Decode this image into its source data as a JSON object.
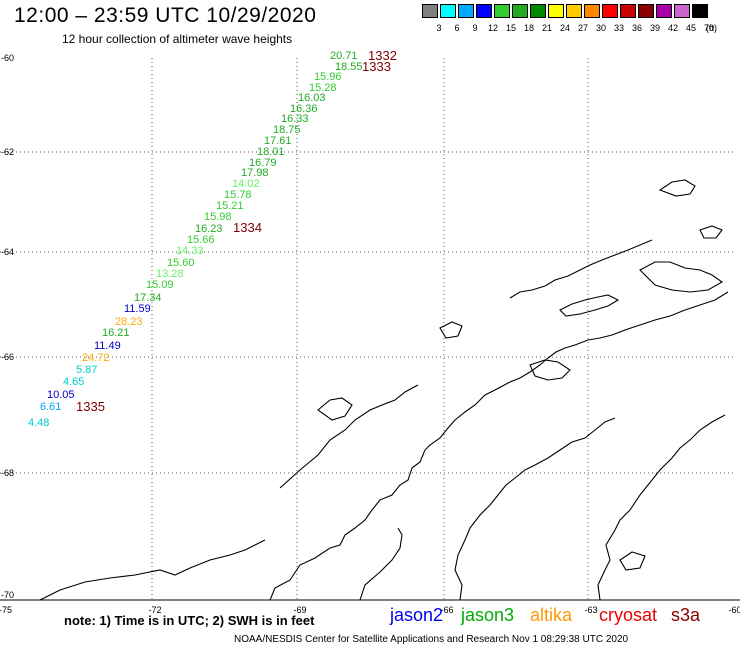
{
  "header": {
    "title": "12:00 – 23:59 UTC 10/29/2020",
    "subtitle": "12 hour collection of altimeter wave heights"
  },
  "color_scale": {
    "unit": "(ft)",
    "bins": [
      {
        "label": "3",
        "color": "#808080"
      },
      {
        "label": "6",
        "color": "#00ffff"
      },
      {
        "label": "9",
        "color": "#00aaff"
      },
      {
        "label": "12",
        "color": "#0000ff"
      },
      {
        "label": "15",
        "color": "#33cc33"
      },
      {
        "label": "18",
        "color": "#22aa22"
      },
      {
        "label": "21",
        "color": "#008800"
      },
      {
        "label": "24",
        "color": "#ffff00"
      },
      {
        "label": "27",
        "color": "#ffcc00"
      },
      {
        "label": "30",
        "color": "#ff8800"
      },
      {
        "label": "33",
        "color": "#ff0000"
      },
      {
        "label": "36",
        "color": "#cc0000"
      },
      {
        "label": "39",
        "color": "#880000"
      },
      {
        "label": "42",
        "color": "#aa00aa"
      },
      {
        "label": "45",
        "color": "#cc66cc"
      },
      {
        "label": "70",
        "color": "#000000"
      }
    ]
  },
  "map": {
    "lon_ticks": [
      "-75",
      "-72",
      "-69",
      "-66",
      "-63",
      "-60"
    ],
    "lat_ticks": [
      "-60",
      "-62",
      "-64",
      "-66",
      "-68",
      "-70"
    ],
    "track_color": "#800000",
    "track_labels": [
      "1332",
      "1333",
      "1334",
      "1335"
    ],
    "observations": [
      {
        "value": "20.71",
        "color": "#22aa22"
      },
      {
        "value": "18.55",
        "color": "#22aa22"
      },
      {
        "value": "15.96",
        "color": "#33cc33"
      },
      {
        "value": "15.28",
        "color": "#33cc33"
      },
      {
        "value": "16.03",
        "color": "#22aa22"
      },
      {
        "value": "16.36",
        "color": "#22aa22"
      },
      {
        "value": "16.33",
        "color": "#22aa22"
      },
      {
        "value": "18.75",
        "color": "#22aa22"
      },
      {
        "value": "17.61",
        "color": "#22aa22"
      },
      {
        "value": "18.01",
        "color": "#22aa22"
      },
      {
        "value": "16.79",
        "color": "#22aa22"
      },
      {
        "value": "17.98",
        "color": "#22aa22"
      },
      {
        "value": "14.02",
        "color": "#66ee66"
      },
      {
        "value": "15.78",
        "color": "#33cc33"
      },
      {
        "value": "15.21",
        "color": "#33cc33"
      },
      {
        "value": "15.98",
        "color": "#33cc33"
      },
      {
        "value": "16.23",
        "color": "#22aa22"
      },
      {
        "value": "15.66",
        "color": "#33cc33"
      },
      {
        "value": "14.33",
        "color": "#66ee66"
      },
      {
        "value": "15.60",
        "color": "#33cc33"
      },
      {
        "value": "13.28",
        "color": "#66ee66"
      },
      {
        "value": "15.09",
        "color": "#33cc33"
      },
      {
        "value": "17.34",
        "color": "#22aa22"
      },
      {
        "value": "11.59",
        "color": "#0000cc"
      },
      {
        "value": "28.23",
        "color": "#ffaa00"
      },
      {
        "value": "16.21",
        "color": "#22aa22"
      },
      {
        "value": "11.49",
        "color": "#0000cc"
      },
      {
        "value": "24.72",
        "color": "#ffaa00"
      },
      {
        "value": "5.87",
        "color": "#00cccc"
      },
      {
        "value": "4.65",
        "color": "#00cccc"
      },
      {
        "value": "10.05",
        "color": "#0000cc"
      },
      {
        "value": "6.61",
        "color": "#00aaff"
      },
      {
        "value": "4.48",
        "color": "#00cccc"
      }
    ]
  },
  "footer": {
    "note": "note:  1) Time is in UTC;  2) SWH is in feet",
    "satellites": [
      {
        "name": "jason2",
        "color": "#0000ee"
      },
      {
        "name": "jason3",
        "color": "#00aa00"
      },
      {
        "name": "altika",
        "color": "#ff9900"
      },
      {
        "name": "cryosat",
        "color": "#ee0000"
      },
      {
        "name": "s3a",
        "color": "#880000"
      }
    ],
    "credit": "NOAA/NESDIS Center for Satellite Applications and Research      Nov  1 08:29:38 UTC 2020"
  }
}
